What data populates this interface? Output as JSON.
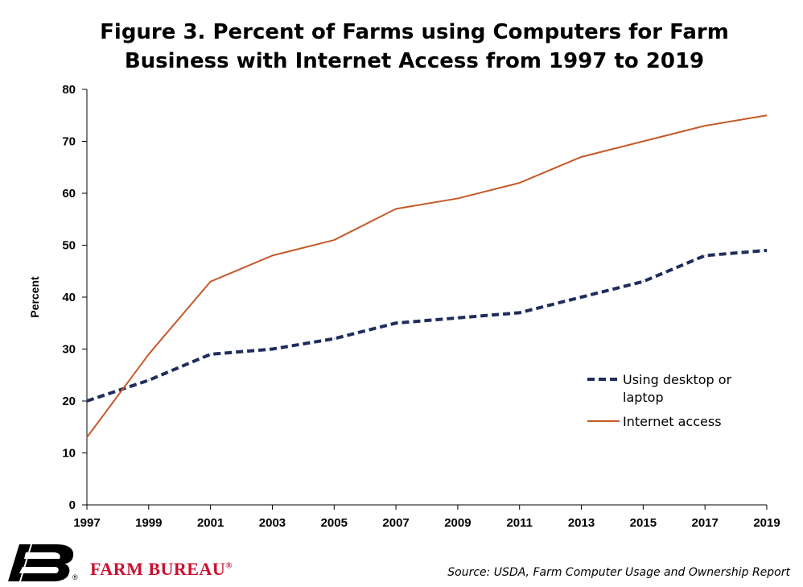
{
  "chart_data": {
    "type": "line",
    "title_line1": "Figure 3. Percent of Farms using Computers for Farm",
    "title_line2": "Business with Internet Access from 1997 to 2019",
    "xlabel": "",
    "ylabel": "Percent",
    "x": [
      "1997",
      "1999",
      "2001",
      "2003",
      "2005",
      "2007",
      "2009",
      "2011",
      "2013",
      "2015",
      "2017",
      "2019"
    ],
    "ylim": [
      0,
      80
    ],
    "yticks": [
      0,
      10,
      20,
      30,
      40,
      50,
      60,
      70,
      80
    ],
    "series": [
      {
        "name": "Using desktop or laptop",
        "legend_lines": [
          "Using desktop or",
          "laptop"
        ],
        "color": "#1f2d5c",
        "style": "dashed",
        "values": [
          20,
          24,
          29,
          30,
          32,
          35,
          36,
          37,
          40,
          43,
          48,
          49
        ]
      },
      {
        "name": "Internet access",
        "legend_lines": [
          "Internet access"
        ],
        "color": "#c55a28",
        "style": "solid",
        "values": [
          13,
          29,
          43,
          48,
          51,
          57,
          59,
          62,
          67,
          70,
          73,
          75
        ]
      }
    ],
    "legend_position": "right",
    "grid": false
  },
  "source": "Source: USDA, Farm Computer Usage and Ownership Report",
  "logo": {
    "text": "FARM BUREAU",
    "reg_mark": "®",
    "brand_color": "#c8102e"
  }
}
